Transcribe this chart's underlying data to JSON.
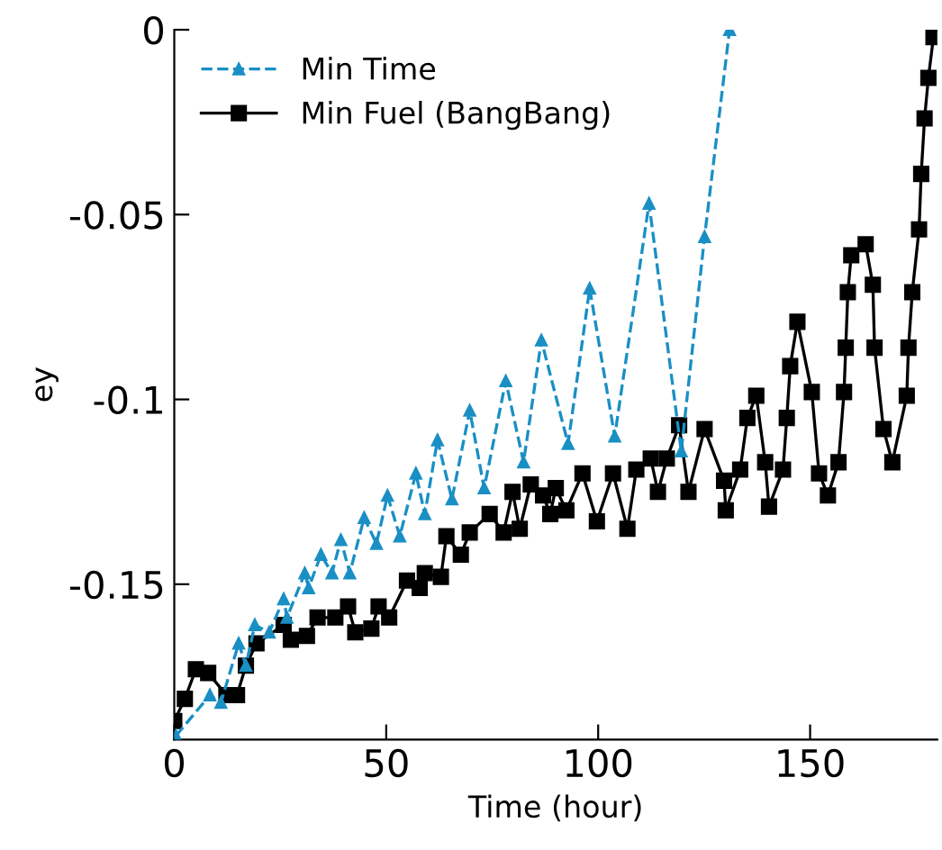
{
  "chart_data": {
    "type": "line",
    "xlabel": "Time (hour)",
    "ylabel": "ey",
    "xlim": [
      0,
      180
    ],
    "ylim": [
      -0.192,
      0
    ],
    "xticks": [
      0,
      50,
      100,
      150
    ],
    "yticks": [
      {
        "value": 0,
        "label": "0"
      },
      {
        "value": -0.05,
        "label": "-0.05"
      },
      {
        "value": -0.1,
        "label": "-0.1"
      },
      {
        "value": -0.15,
        "label": "-0.15"
      }
    ],
    "grid": false,
    "legend": "top left",
    "series": [
      {
        "name": "Min Time",
        "color": "#1a8fc4",
        "marker": "triangle",
        "line_style": "dashed",
        "x": [
          0.4,
          8.4,
          11.0,
          15.2,
          16.9,
          19.0,
          22.4,
          25.8,
          26.6,
          30.8,
          31.7,
          34.6,
          37.2,
          39.3,
          41.4,
          44.8,
          47.7,
          50.3,
          53.2,
          57.0,
          59.1,
          62.1,
          65.5,
          69.7,
          73.1,
          78.2,
          82.4,
          86.6,
          92.9,
          98.0,
          103.9,
          112.0,
          119.6,
          125.1,
          131.0
        ],
        "values": [
          -0.191,
          -0.18,
          -0.182,
          -0.166,
          -0.172,
          -0.161,
          -0.163,
          -0.154,
          -0.159,
          -0.147,
          -0.151,
          -0.142,
          -0.147,
          -0.138,
          -0.147,
          -0.132,
          -0.139,
          -0.126,
          -0.137,
          -0.12,
          -0.131,
          -0.111,
          -0.127,
          -0.103,
          -0.124,
          -0.095,
          -0.117,
          -0.084,
          -0.112,
          -0.07,
          -0.11,
          -0.047,
          -0.114,
          -0.056,
          0
        ]
      },
      {
        "name": "Min Fuel (BangBang)",
        "color": "#000000",
        "marker": "square",
        "line_style": "solid",
        "x": [
          0,
          2.5,
          5.1,
          8.0,
          12.3,
          14.8,
          16.9,
          19.4,
          25.8,
          27.5,
          31.3,
          33.8,
          38.0,
          41.0,
          42.7,
          46.5,
          48.2,
          50.7,
          54.9,
          57.9,
          59.1,
          62.9,
          64.2,
          67.6,
          69.7,
          74.4,
          77.7,
          79.8,
          81.5,
          84.1,
          87.0,
          88.7,
          90.0,
          92.5,
          96.3,
          99.7,
          103.5,
          106.9,
          109.0,
          112.4,
          114.1,
          116.2,
          119.1,
          121.3,
          125.1,
          129.7,
          130.1,
          133.5,
          135.2,
          137.3,
          139.4,
          140.3,
          143.6,
          144.5,
          145.3,
          147.0,
          150.4,
          152.1,
          154.2,
          156.7,
          158.0,
          158.4,
          158.9,
          159.7,
          163.1,
          164.8,
          165.2,
          167.3,
          169.4,
          172.8,
          173.2,
          174.1,
          175.7,
          176.2,
          177.0,
          177.9,
          179.1
        ],
        "values": [
          -0.187,
          -0.181,
          -0.173,
          -0.174,
          -0.18,
          -0.18,
          -0.172,
          -0.166,
          -0.161,
          -0.165,
          -0.164,
          -0.159,
          -0.159,
          -0.156,
          -0.163,
          -0.162,
          -0.156,
          -0.159,
          -0.149,
          -0.151,
          -0.147,
          -0.148,
          -0.137,
          -0.142,
          -0.136,
          -0.131,
          -0.136,
          -0.125,
          -0.135,
          -0.123,
          -0.126,
          -0.131,
          -0.124,
          -0.13,
          -0.12,
          -0.133,
          -0.12,
          -0.135,
          -0.119,
          -0.116,
          -0.125,
          -0.116,
          -0.107,
          -0.125,
          -0.108,
          -0.122,
          -0.13,
          -0.119,
          -0.105,
          -0.099,
          -0.117,
          -0.129,
          -0.119,
          -0.105,
          -0.091,
          -0.079,
          -0.098,
          -0.12,
          -0.126,
          -0.117,
          -0.098,
          -0.086,
          -0.071,
          -0.061,
          -0.058,
          -0.069,
          -0.086,
          -0.108,
          -0.117,
          -0.099,
          -0.086,
          -0.071,
          -0.054,
          -0.039,
          -0.024,
          -0.013,
          -0.002
        ]
      }
    ]
  }
}
